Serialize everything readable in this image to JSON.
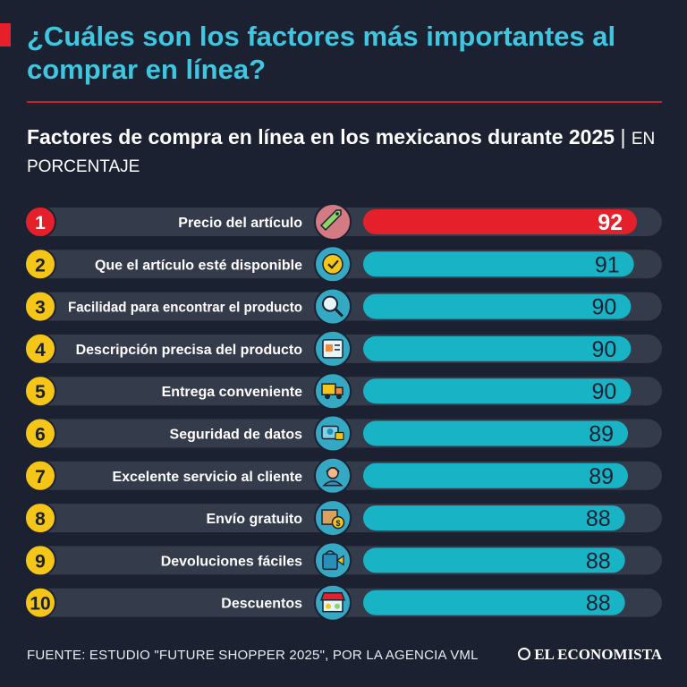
{
  "header": {
    "title": "¿Cuáles son los factores más importantes al comprar en línea?",
    "subtitle_main": "Factores de compra en línea en los mexicanos durante 2025",
    "subtitle_separator": "|",
    "subtitle_unit": "EN PORCENTAJE"
  },
  "footer": {
    "source": "FUENTE:  ESTUDIO \"FUTURE SHOPPER 2025\", POR LA AGENCIA VML",
    "brand": "EL ECONOMISTA"
  },
  "colors": {
    "background": "#1b2130",
    "title": "#3fc6e0",
    "highlight_bar": "#e5202a",
    "bar": "#19b3c6",
    "track": "#343b4a",
    "number_circle": "#f5c518",
    "highlight_circle": "#e5202a"
  },
  "chart_data": {
    "type": "bar",
    "orientation": "horizontal",
    "title": "Factores de compra en línea en los mexicanos durante 2025",
    "unit": "EN PORCENTAJE",
    "ranks": [
      "1",
      "2",
      "3",
      "4",
      "5",
      "6",
      "7",
      "8",
      "9",
      "10"
    ],
    "categories": [
      "Precio del artículo",
      "Que el artículo esté disponible",
      "Facilidad para encontrar el producto",
      "Descripción precisa del producto",
      "Entrega conveniente",
      "Seguridad de datos",
      "Excelente servicio al cliente",
      "Envío gratuito",
      "Devoluciones fáciles",
      "Descuentos"
    ],
    "values": [
      92,
      91,
      90,
      90,
      90,
      89,
      89,
      88,
      88,
      88
    ],
    "icons": [
      "price-tag-icon",
      "check-badge-icon",
      "search-product-icon",
      "product-description-icon",
      "delivery-truck-icon",
      "data-security-icon",
      "customer-service-icon",
      "free-shipping-icon",
      "easy-returns-icon",
      "discount-store-icon"
    ],
    "highlight_index": 0,
    "xlim": [
      0,
      92
    ]
  }
}
